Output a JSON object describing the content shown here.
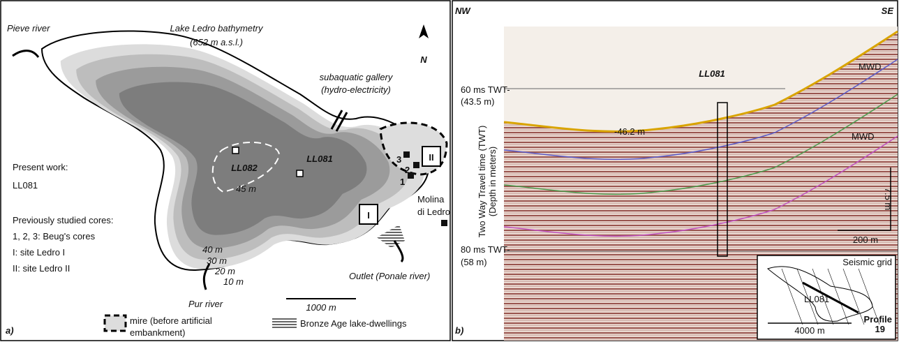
{
  "panel_a": {
    "label": "a)",
    "title": [
      "Lake Ledro bathymetry",
      "(652 m a.s.l.)"
    ],
    "north": "N",
    "rivers": {
      "pieve": "Pieve river",
      "pur": "Pur river",
      "outlet": "Outlet (Ponale river)"
    },
    "gallery": [
      "subaquatic gallery",
      "(hydro-electricity)"
    ],
    "notes": [
      "Present work:",
      "LL081",
      "Previously studied cores:",
      "1, 2, 3: Beug's cores",
      "I: site Ledro I",
      "II: site Ledro II"
    ],
    "cores": [
      "LL082",
      "LL081"
    ],
    "beug_cores": [
      "3",
      "2",
      "1"
    ],
    "sites": [
      "II",
      "I"
    ],
    "town": [
      "Molina",
      "di Ledro"
    ],
    "depths": [
      "45 m",
      "40 m",
      "30 m",
      "20 m",
      "10 m"
    ],
    "scale_bar": "1000 m",
    "legend": [
      "mire (before artificial",
      "embankment)",
      "Bronze Age lake-dwellings"
    ]
  },
  "panel_b": {
    "label": "b)",
    "directions": [
      "NW",
      "SE"
    ],
    "core": "LL081",
    "mwd": [
      "MWD",
      "MWD"
    ],
    "depth_label": "-46.2 m",
    "twt_top": [
      "60 ms TWT-",
      "(43.5 m)"
    ],
    "twt_bottom": [
      "80 ms TWT-",
      "(58 m)"
    ],
    "axis_label": [
      "Two Way Travel time (TWT)",
      "(Depth in meters)"
    ],
    "vertical_scale": "7.5 m",
    "horizontal_scale": "200 m",
    "inset": {
      "title": "Seismic grid",
      "core": "LL081",
      "profile": [
        "Profile",
        "19"
      ],
      "scale_bar": "4000 m"
    }
  }
}
